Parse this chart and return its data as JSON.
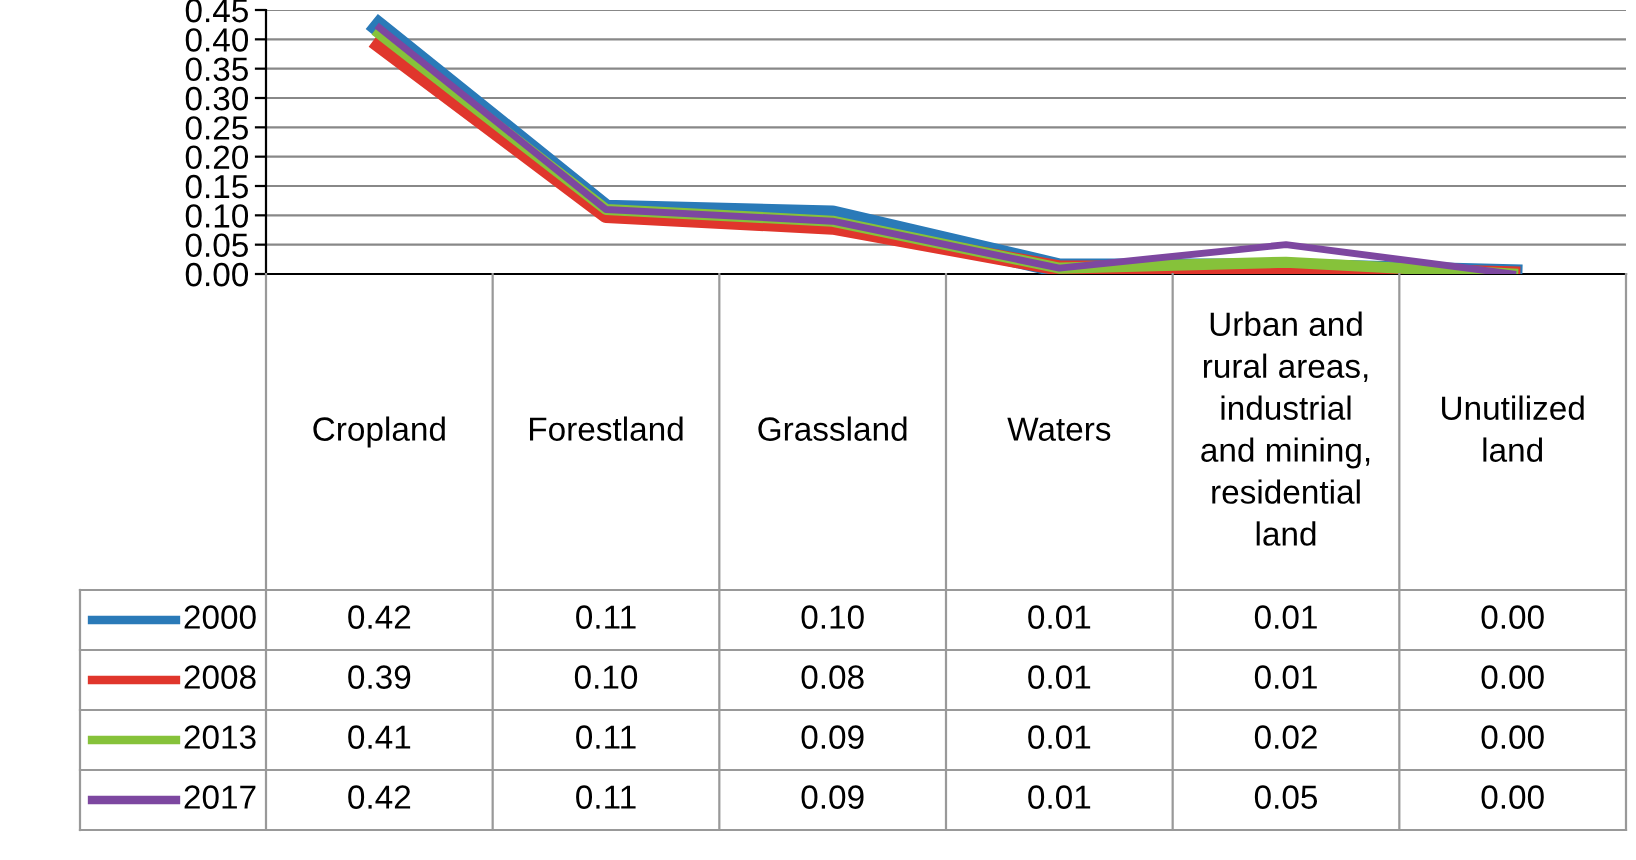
{
  "chart_data": {
    "type": "line",
    "categories": [
      "Cropland",
      "Forestland",
      "Grassland",
      "Waters",
      "Urban and rural areas, industrial and mining, residential land",
      "Unutilized land"
    ],
    "series": [
      {
        "name": "2000",
        "color": "#2a7ab8",
        "values": [
          0.42,
          0.11,
          0.1,
          0.01,
          0.01,
          0.0
        ],
        "value_labels": [
          "0.42",
          "0.11",
          "0.10",
          "0.01",
          "0.01",
          "0.00"
        ]
      },
      {
        "name": "2008",
        "color": "#e0362c",
        "values": [
          0.39,
          0.1,
          0.08,
          0.01,
          0.01,
          0.0
        ],
        "value_labels": [
          "0.39",
          "0.10",
          "0.08",
          "0.01",
          "0.01",
          "0.00"
        ]
      },
      {
        "name": "2013",
        "color": "#86c23a",
        "values": [
          0.41,
          0.11,
          0.09,
          0.01,
          0.02,
          0.0
        ],
        "value_labels": [
          "0.41",
          "0.11",
          "0.09",
          "0.01",
          "0.02",
          "0.00"
        ]
      },
      {
        "name": "2017",
        "color": "#7d47a0",
        "values": [
          0.42,
          0.11,
          0.09,
          0.01,
          0.05,
          0.0
        ],
        "value_labels": [
          "0.42",
          "0.11",
          "0.09",
          "0.01",
          "0.05",
          "0.00"
        ]
      }
    ],
    "ylim": [
      0,
      0.45
    ],
    "yticks": [
      {
        "value": 0,
        "label": "0.00"
      },
      {
        "value": 0.05,
        "label": "0.05"
      },
      {
        "value": 0.1,
        "label": "0.10"
      },
      {
        "value": 0.15,
        "label": "0.15"
      },
      {
        "value": 0.2,
        "label": "0.20"
      },
      {
        "value": 0.25,
        "label": "0.25"
      },
      {
        "value": 0.3,
        "label": "0.30"
      },
      {
        "value": 0.35,
        "label": "0.35"
      },
      {
        "value": 0.4,
        "label": "0.40"
      },
      {
        "value": 0.45,
        "label": "0.45"
      }
    ],
    "grid": "y",
    "legend": "bottom",
    "marker": "none",
    "line_style": "solid"
  }
}
